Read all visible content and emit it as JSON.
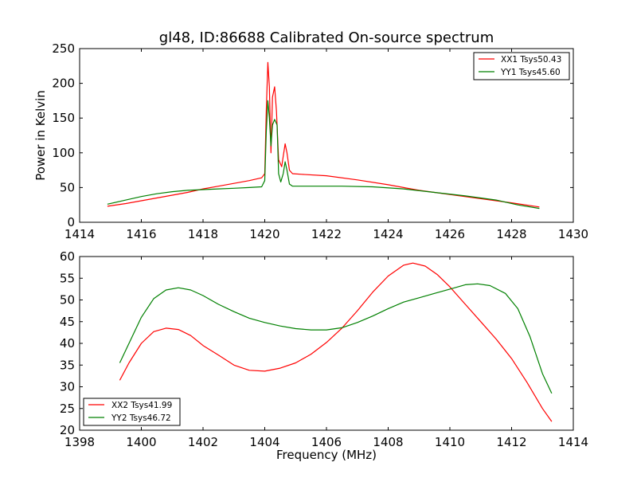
{
  "title": "gl48, ID:86688 Calibrated On-source spectrum",
  "chart_data": [
    {
      "type": "line",
      "ylabel": "Power in Kelvin",
      "xlabel": "",
      "xlim": [
        1414,
        1430
      ],
      "ylim": [
        0,
        250
      ],
      "xticks": [
        1414,
        1416,
        1418,
        1420,
        1422,
        1424,
        1426,
        1428,
        1430
      ],
      "yticks": [
        0,
        50,
        100,
        150,
        200,
        250
      ],
      "grid": false,
      "legend": "top-right",
      "series": [
        {
          "name": "XX1 Tsys50.43",
          "color": "#ff0000",
          "points": [
            [
              1414.9,
              23
            ],
            [
              1415.5,
              27
            ],
            [
              1416.0,
              31
            ],
            [
              1416.5,
              35
            ],
            [
              1417.0,
              39
            ],
            [
              1417.5,
              43
            ],
            [
              1418.0,
              48
            ],
            [
              1418.5,
              52
            ],
            [
              1419.0,
              56
            ],
            [
              1419.5,
              60
            ],
            [
              1419.9,
              64
            ],
            [
              1420.0,
              70
            ],
            [
              1420.05,
              160
            ],
            [
              1420.1,
              230
            ],
            [
              1420.15,
              195
            ],
            [
              1420.2,
              100
            ],
            [
              1420.25,
              180
            ],
            [
              1420.32,
              195
            ],
            [
              1420.38,
              160
            ],
            [
              1420.45,
              90
            ],
            [
              1420.55,
              80
            ],
            [
              1420.6,
              95
            ],
            [
              1420.66,
              113
            ],
            [
              1420.72,
              100
            ],
            [
              1420.8,
              75
            ],
            [
              1420.9,
              70
            ],
            [
              1421.2,
              69
            ],
            [
              1422.0,
              67
            ],
            [
              1423.0,
              61
            ],
            [
              1424.0,
              54
            ],
            [
              1425.0,
              46
            ],
            [
              1426.0,
              40
            ],
            [
              1427.0,
              34
            ],
            [
              1428.0,
              28
            ],
            [
              1428.9,
              22
            ]
          ]
        },
        {
          "name": "YY1 Tsys45.60",
          "color": "#008000",
          "points": [
            [
              1414.9,
              26
            ],
            [
              1415.5,
              32
            ],
            [
              1416.0,
              37
            ],
            [
              1416.5,
              41
            ],
            [
              1417.0,
              44
            ],
            [
              1417.5,
              46
            ],
            [
              1418.0,
              47
            ],
            [
              1418.5,
              48
            ],
            [
              1419.0,
              49
            ],
            [
              1419.5,
              50
            ],
            [
              1419.9,
              51
            ],
            [
              1420.0,
              60
            ],
            [
              1420.05,
              130
            ],
            [
              1420.1,
              175
            ],
            [
              1420.15,
              150
            ],
            [
              1420.2,
              110
            ],
            [
              1420.25,
              140
            ],
            [
              1420.32,
              148
            ],
            [
              1420.4,
              140
            ],
            [
              1420.45,
              70
            ],
            [
              1420.52,
              58
            ],
            [
              1420.6,
              70
            ],
            [
              1420.66,
              87
            ],
            [
              1420.72,
              75
            ],
            [
              1420.8,
              55
            ],
            [
              1420.9,
              52
            ],
            [
              1421.5,
              52
            ],
            [
              1422.5,
              52
            ],
            [
              1423.5,
              51
            ],
            [
              1424.5,
              48
            ],
            [
              1425.5,
              43
            ],
            [
              1426.5,
              38
            ],
            [
              1427.5,
              32
            ],
            [
              1428.2,
              25
            ],
            [
              1428.9,
              20
            ]
          ]
        }
      ]
    },
    {
      "type": "line",
      "xlabel": "Frequency (MHz)",
      "ylabel": "",
      "xlim": [
        1398,
        1414
      ],
      "ylim": [
        20,
        60
      ],
      "xticks": [
        1398,
        1400,
        1402,
        1404,
        1406,
        1408,
        1410,
        1412,
        1414
      ],
      "yticks": [
        20,
        25,
        30,
        35,
        40,
        45,
        50,
        55,
        60
      ],
      "grid": false,
      "legend": "bottom-left",
      "series": [
        {
          "name": "XX2 Tsys41.99",
          "color": "#ff0000",
          "points": [
            [
              1399.3,
              31.5
            ],
            [
              1399.6,
              35.5
            ],
            [
              1400.0,
              40
            ],
            [
              1400.4,
              42.7
            ],
            [
              1400.8,
              43.5
            ],
            [
              1401.2,
              43.2
            ],
            [
              1401.6,
              41.8
            ],
            [
              1402.0,
              39.5
            ],
            [
              1402.5,
              37.3
            ],
            [
              1403.0,
              35
            ],
            [
              1403.5,
              33.8
            ],
            [
              1404.0,
              33.6
            ],
            [
              1404.5,
              34.3
            ],
            [
              1405.0,
              35.5
            ],
            [
              1405.5,
              37.5
            ],
            [
              1406.0,
              40.2
            ],
            [
              1406.5,
              43.5
            ],
            [
              1407.0,
              47.5
            ],
            [
              1407.5,
              51.8
            ],
            [
              1408.0,
              55.5
            ],
            [
              1408.5,
              58
            ],
            [
              1408.8,
              58.5
            ],
            [
              1409.2,
              57.8
            ],
            [
              1409.6,
              55.8
            ],
            [
              1410.0,
              53
            ],
            [
              1410.5,
              49
            ],
            [
              1411.0,
              45
            ],
            [
              1411.5,
              41
            ],
            [
              1412.0,
              36.5
            ],
            [
              1412.5,
              31
            ],
            [
              1413.0,
              25
            ],
            [
              1413.3,
              22
            ]
          ]
        },
        {
          "name": "YY2 Tsys46.72",
          "color": "#008000",
          "points": [
            [
              1399.3,
              35.5
            ],
            [
              1399.6,
              40
            ],
            [
              1400.0,
              46
            ],
            [
              1400.4,
              50.3
            ],
            [
              1400.8,
              52.3
            ],
            [
              1401.2,
              52.8
            ],
            [
              1401.6,
              52.3
            ],
            [
              1402.0,
              51
            ],
            [
              1402.5,
              49
            ],
            [
              1403.0,
              47.3
            ],
            [
              1403.5,
              45.8
            ],
            [
              1404.0,
              44.8
            ],
            [
              1404.5,
              44
            ],
            [
              1405.0,
              43.4
            ],
            [
              1405.5,
              43.1
            ],
            [
              1406.0,
              43.1
            ],
            [
              1406.5,
              43.6
            ],
            [
              1407.0,
              44.8
            ],
            [
              1407.5,
              46.3
            ],
            [
              1408.0,
              48
            ],
            [
              1408.5,
              49.5
            ],
            [
              1409.0,
              50.5
            ],
            [
              1409.5,
              51.5
            ],
            [
              1410.0,
              52.5
            ],
            [
              1410.5,
              53.5
            ],
            [
              1410.9,
              53.7
            ],
            [
              1411.3,
              53.3
            ],
            [
              1411.8,
              51.5
            ],
            [
              1412.2,
              48
            ],
            [
              1412.6,
              41.5
            ],
            [
              1413.0,
              33
            ],
            [
              1413.3,
              28.5
            ]
          ]
        }
      ]
    }
  ]
}
